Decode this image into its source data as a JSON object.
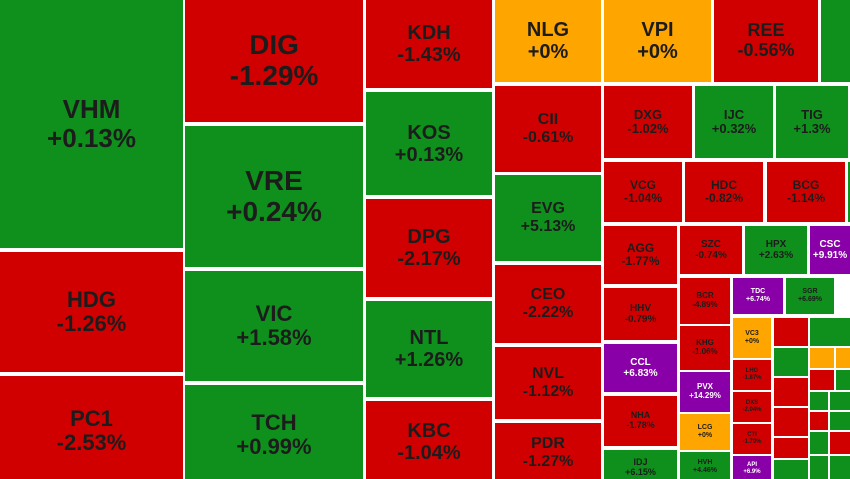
{
  "tiles": [
    {
      "ticker": "VHM",
      "change": "+0.13%",
      "color": "#0f8f1c"
    },
    {
      "ticker": "HDG",
      "change": "-1.26%",
      "color": "#d10000"
    },
    {
      "ticker": "PC1",
      "change": "-2.53%",
      "color": "#d10000"
    },
    {
      "ticker": "DIG",
      "change": "-1.29%",
      "color": "#d10000"
    },
    {
      "ticker": "VRE",
      "change": "+0.24%",
      "color": "#0f8f1c"
    },
    {
      "ticker": "VIC",
      "change": "+1.58%",
      "color": "#0f8f1c"
    },
    {
      "ticker": "TCH",
      "change": "+0.99%",
      "color": "#0f8f1c"
    },
    {
      "ticker": "KDH",
      "change": "-1.43%",
      "color": "#d10000"
    },
    {
      "ticker": "KOS",
      "change": "+0.13%",
      "color": "#0f8f1c"
    },
    {
      "ticker": "DPG",
      "change": "-2.17%",
      "color": "#d10000"
    },
    {
      "ticker": "NTL",
      "change": "+1.26%",
      "color": "#0f8f1c"
    },
    {
      "ticker": "KBC",
      "change": "-1.04%",
      "color": "#d10000"
    },
    {
      "ticker": "NLG",
      "change": "+0%",
      "color": "#ffa500"
    },
    {
      "ticker": "CII",
      "change": "-0.61%",
      "color": "#d10000"
    },
    {
      "ticker": "EVG",
      "change": "+5.13%",
      "color": "#0f8f1c"
    },
    {
      "ticker": "CEO",
      "change": "-2.22%",
      "color": "#d10000"
    },
    {
      "ticker": "NVL",
      "change": "-1.12%",
      "color": "#d10000"
    },
    {
      "ticker": "PDR",
      "change": "-1.27%",
      "color": "#d10000"
    },
    {
      "ticker": "VPI",
      "change": "+0%",
      "color": "#ffa500"
    },
    {
      "ticker": "DXG",
      "change": "-1.02%",
      "color": "#d10000"
    },
    {
      "ticker": "VCG",
      "change": "-1.04%",
      "color": "#d10000"
    },
    {
      "ticker": "AGG",
      "change": "-1.77%",
      "color": "#d10000"
    },
    {
      "ticker": "HHV",
      "change": "-0.79%",
      "color": "#d10000"
    },
    {
      "ticker": "CCL",
      "change": "+6.83%",
      "color": "#8a00a8"
    },
    {
      "ticker": "NHA",
      "change": "-1.78%",
      "color": "#d10000"
    },
    {
      "ticker": "IDJ",
      "change": "+6.15%",
      "color": "#0f8f1c"
    },
    {
      "ticker": "REE",
      "change": "-0.56%",
      "color": "#d10000"
    },
    {
      "ticker": "IJC",
      "change": "+0.32%",
      "color": "#0f8f1c"
    },
    {
      "ticker": "TIG",
      "change": "+1.3%",
      "color": "#0f8f1c"
    },
    {
      "ticker": "HDC",
      "change": "-0.82%",
      "color": "#d10000"
    },
    {
      "ticker": "BCG",
      "change": "-1.14%",
      "color": "#d10000"
    },
    {
      "ticker": "SZC",
      "change": "-0.74%",
      "color": "#d10000"
    },
    {
      "ticker": "HPX",
      "change": "+2.63%",
      "color": "#0f8f1c"
    },
    {
      "ticker": "CSC",
      "change": "+9.91%",
      "color": "#8a00a8"
    },
    {
      "ticker": "BCR",
      "change": "-4.89%",
      "color": "#d10000"
    },
    {
      "ticker": "TDC",
      "change": "+6.74%",
      "color": "#8a00a8"
    },
    {
      "ticker": "SGR",
      "change": "+6.69%",
      "color": "#0f8f1c"
    },
    {
      "ticker": "KHG",
      "change": "-1.06%",
      "color": "#d10000"
    },
    {
      "ticker": "VC3",
      "change": "+0%",
      "color": "#ffa500"
    },
    {
      "ticker": "PVX",
      "change": "+14.29%",
      "color": "#8a00a8"
    },
    {
      "ticker": "LCG",
      "change": "+0%",
      "color": "#ffa500"
    },
    {
      "ticker": "HVH",
      "change": "+4.46%",
      "color": "#0f8f1c"
    },
    {
      "ticker": "LHG",
      "change": "-1.87%",
      "color": "#d10000"
    },
    {
      "ticker": "DXS",
      "change": "-2.04%",
      "color": "#d10000"
    },
    {
      "ticker": "CTI",
      "change": "-1.79%",
      "color": "#d10000"
    },
    {
      "ticker": "API",
      "change": "+6.9%",
      "color": "#8a00a8"
    }
  ]
}
